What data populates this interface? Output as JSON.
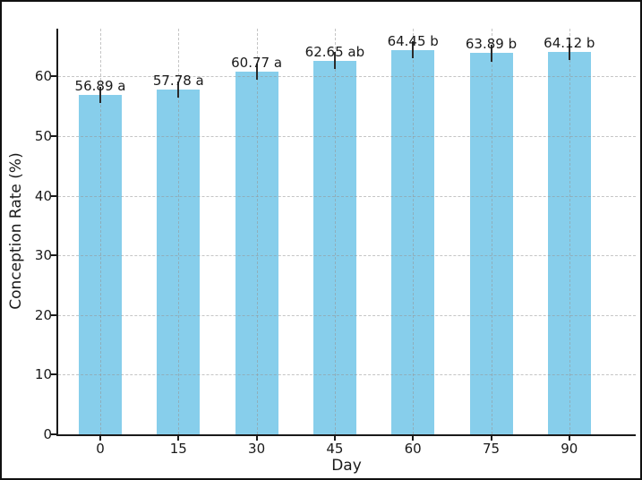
{
  "chart_data": {
    "type": "bar",
    "title": "",
    "xlabel": "Day",
    "ylabel": "Conception Rate (%)",
    "categories": [
      "0",
      "15",
      "30",
      "45",
      "60",
      "75",
      "90"
    ],
    "values": [
      56.89,
      57.78,
      60.77,
      62.65,
      64.45,
      63.89,
      64.12
    ],
    "value_labels": [
      "56.89 a",
      "57.78 a",
      "60.77 a",
      "62.65 ab",
      "64.45 b",
      "63.89 b",
      "64.12 b"
    ],
    "error_bar_halfheight": 1.4,
    "yticks": [
      0,
      10,
      20,
      30,
      40,
      50,
      60
    ],
    "ylim": [
      0,
      68
    ],
    "bar_color": "#87CEEB",
    "axis_color": "#1a1a1a",
    "grid": "both-dashed",
    "legend_position": "none"
  }
}
